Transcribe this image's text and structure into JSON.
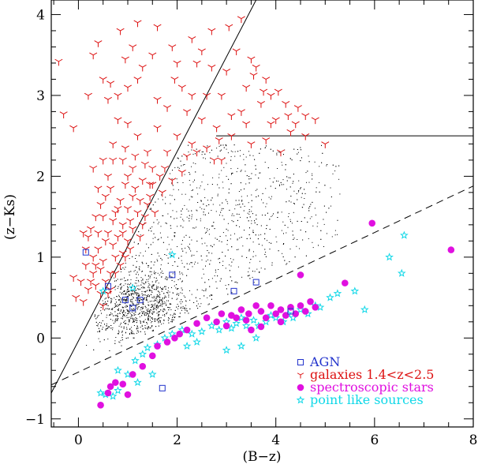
{
  "chart_data": {
    "type": "scatter",
    "title": "",
    "xlabel": "(B−z)",
    "ylabel": "(z−Ks)",
    "xlim": [
      -0.55,
      8.0
    ],
    "ylim": [
      -1.1,
      4.18
    ],
    "xticks": [
      0,
      2,
      4,
      6,
      8
    ],
    "xtick_labels": [
      "0",
      "2",
      "4",
      "6",
      "8"
    ],
    "yticks": [
      -1,
      0,
      1,
      2,
      3,
      4
    ],
    "ytick_labels": [
      "−1",
      "0",
      "1",
      "2",
      "3",
      "4"
    ],
    "grid": false,
    "legend_position": "bottom-right",
    "lines": [
      {
        "style": "solid",
        "points": [
          [
            -0.55,
            -0.68
          ],
          [
            3.6,
            4.18
          ]
        ]
      },
      {
        "style": "solid",
        "points": [
          [
            2.79,
            2.5
          ],
          [
            8.0,
            2.5
          ]
        ]
      },
      {
        "style": "dashed",
        "points": [
          [
            -0.55,
            -0.58
          ],
          [
            8.0,
            1.88
          ]
        ]
      }
    ],
    "series": [
      {
        "name": "AGN",
        "marker": "open-square",
        "color": "#2233cc",
        "points": [
          [
            0.15,
            1.06
          ],
          [
            0.95,
            0.47
          ],
          [
            1.1,
            0.37
          ],
          [
            1.25,
            0.47
          ],
          [
            1.9,
            0.78
          ],
          [
            0.6,
            0.64
          ],
          [
            3.15,
            0.58
          ],
          [
            3.6,
            0.69
          ],
          [
            4.3,
            0.33
          ],
          [
            1.7,
            -0.62
          ]
        ]
      },
      {
        "name": "galaxies 1.4<z<2.5",
        "marker": "tri",
        "color": "#dd1111",
        "points": [
          [
            -0.4,
            3.42
          ],
          [
            -0.3,
            2.77
          ],
          [
            -0.1,
            2.6
          ],
          [
            0.2,
            3.0
          ],
          [
            0.3,
            3.5
          ],
          [
            0.5,
            3.2
          ],
          [
            0.6,
            2.95
          ],
          [
            0.85,
            3.8
          ],
          [
            0.8,
            3.0
          ],
          [
            1.1,
            3.6
          ],
          [
            1.0,
            3.1
          ],
          [
            1.3,
            3.35
          ],
          [
            1.5,
            3.5
          ],
          [
            1.2,
            3.9
          ],
          [
            1.6,
            3.85
          ],
          [
            1.9,
            3.6
          ],
          [
            1.95,
            3.2
          ],
          [
            1.8,
            2.85
          ],
          [
            2.1,
            3.1
          ],
          [
            2.3,
            3.7
          ],
          [
            2.4,
            3.4
          ],
          [
            2.6,
            3.0
          ],
          [
            2.7,
            3.35
          ],
          [
            2.9,
            3.0
          ],
          [
            2.8,
            2.6
          ],
          [
            3.0,
            3.3
          ],
          [
            3.2,
            3.55
          ],
          [
            3.3,
            2.8
          ],
          [
            3.4,
            3.1
          ],
          [
            3.5,
            3.45
          ],
          [
            3.6,
            3.35
          ],
          [
            3.7,
            2.9
          ],
          [
            3.8,
            3.2
          ],
          [
            3.9,
            3.0
          ],
          [
            4.0,
            2.7
          ],
          [
            4.2,
            2.9
          ],
          [
            4.4,
            2.65
          ],
          [
            4.6,
            2.5
          ],
          [
            4.8,
            2.7
          ],
          [
            5.0,
            2.4
          ],
          [
            2.2,
            2.8
          ],
          [
            2.5,
            2.7
          ],
          [
            2.3,
            2.4
          ],
          [
            2.0,
            2.5
          ],
          [
            2.6,
            2.35
          ],
          [
            2.9,
            2.2
          ],
          [
            3.1,
            2.5
          ],
          [
            3.4,
            2.65
          ],
          [
            3.5,
            2.4
          ],
          [
            3.8,
            2.45
          ],
          [
            4.1,
            2.3
          ],
          [
            4.3,
            2.55
          ],
          [
            0.7,
            2.4
          ],
          [
            0.9,
            2.2
          ],
          [
            1.0,
            2.0
          ],
          [
            1.2,
            2.5
          ],
          [
            1.4,
            2.3
          ],
          [
            1.5,
            2.1
          ],
          [
            1.6,
            2.6
          ],
          [
            1.3,
            1.95
          ],
          [
            1.5,
            1.9
          ],
          [
            1.7,
            1.8
          ],
          [
            1.1,
            1.75
          ],
          [
            0.8,
            1.6
          ],
          [
            0.9,
            1.4
          ],
          [
            1.0,
            1.6
          ],
          [
            1.2,
            1.55
          ],
          [
            1.3,
            1.4
          ],
          [
            1.4,
            1.65
          ],
          [
            0.6,
            1.3
          ],
          [
            0.7,
            1.15
          ],
          [
            0.8,
            1.25
          ],
          [
            0.9,
            1.05
          ],
          [
            1.0,
            1.2
          ],
          [
            1.1,
            1.35
          ],
          [
            0.4,
            1.1
          ],
          [
            0.5,
            0.95
          ],
          [
            0.55,
            1.2
          ],
          [
            0.65,
            0.8
          ],
          [
            0.75,
            1.0
          ],
          [
            0.3,
            0.8
          ],
          [
            0.2,
            0.6
          ],
          [
            0.1,
            0.45
          ],
          [
            0.35,
            0.65
          ],
          [
            0.45,
            0.55
          ],
          [
            0.5,
            0.4
          ],
          [
            0.6,
            0.55
          ],
          [
            -0.05,
            0.5
          ],
          [
            -0.1,
            0.75
          ],
          [
            0.25,
            1.35
          ],
          [
            0.35,
            1.5
          ],
          [
            0.45,
            1.65
          ],
          [
            0.55,
            1.75
          ],
          [
            0.65,
            1.85
          ],
          [
            0.75,
            1.55
          ],
          [
            0.85,
            1.7
          ],
          [
            0.95,
            1.9
          ],
          [
            1.05,
            1.45
          ],
          [
            1.15,
            1.85
          ],
          [
            1.25,
            1.7
          ],
          [
            1.35,
            1.5
          ],
          [
            1.45,
            1.75
          ],
          [
            0.2,
            1.25
          ],
          [
            0.3,
            1.0
          ],
          [
            0.15,
            0.9
          ],
          [
            0.05,
            0.7
          ],
          [
            0.6,
            2.0
          ],
          [
            0.8,
            2.7
          ],
          [
            1.0,
            2.65
          ],
          [
            0.7,
            2.2
          ],
          [
            1.1,
            2.1
          ],
          [
            1.9,
            1.95
          ],
          [
            2.1,
            2.05
          ],
          [
            1.8,
            2.3
          ],
          [
            1.6,
            2.95
          ],
          [
            2.0,
            3.4
          ],
          [
            2.3,
            3.0
          ],
          [
            2.5,
            3.55
          ],
          [
            2.7,
            3.8
          ],
          [
            3.05,
            3.85
          ],
          [
            3.3,
            3.95
          ],
          [
            3.55,
            3.25
          ],
          [
            3.75,
            3.05
          ],
          [
            4.05,
            3.05
          ],
          [
            4.25,
            2.75
          ],
          [
            4.45,
            2.85
          ],
          [
            4.6,
            2.75
          ],
          [
            3.9,
            2.65
          ],
          [
            3.1,
            2.75
          ],
          [
            2.85,
            2.45
          ],
          [
            1.75,
            2.1
          ],
          [
            1.55,
            1.55
          ],
          [
            1.25,
            1.25
          ],
          [
            1.05,
            1.1
          ],
          [
            0.9,
            1.3
          ],
          [
            0.7,
            1.45
          ],
          [
            0.5,
            1.5
          ],
          [
            0.4,
            1.3
          ],
          [
            0.35,
            0.9
          ],
          [
            0.25,
            0.7
          ],
          [
            0.15,
            1.1
          ],
          [
            0.1,
            1.3
          ],
          [
            0.45,
            0.85
          ],
          [
            0.55,
            0.7
          ],
          [
            0.65,
            0.6
          ],
          [
            0.75,
            0.8
          ],
          [
            0.85,
            0.9
          ],
          [
            0.95,
            1.0
          ],
          [
            1.45,
            1.9
          ],
          [
            1.65,
            2.0
          ],
          [
            0.5,
            2.2
          ],
          [
            0.95,
            2.35
          ],
          [
            1.15,
            2.25
          ],
          [
            1.35,
            2.15
          ],
          [
            0.3,
            2.1
          ],
          [
            0.4,
            1.85
          ],
          [
            1.2,
            3.2
          ],
          [
            0.95,
            3.45
          ],
          [
            0.65,
            3.15
          ],
          [
            0.4,
            3.65
          ],
          [
            2.4,
            2.3
          ],
          [
            2.2,
            2.25
          ],
          [
            2.75,
            2.2
          ]
        ]
      },
      {
        "name": "spectroscopic stars",
        "marker": "filled-circle",
        "color": "#e010e0",
        "points": [
          [
            0.45,
            -0.83
          ],
          [
            0.6,
            -0.68
          ],
          [
            0.65,
            -0.6
          ],
          [
            0.75,
            -0.55
          ],
          [
            0.9,
            -0.57
          ],
          [
            1.0,
            -0.7
          ],
          [
            1.1,
            -0.45
          ],
          [
            1.3,
            -0.35
          ],
          [
            1.5,
            -0.22
          ],
          [
            1.6,
            -0.1
          ],
          [
            1.8,
            -0.05
          ],
          [
            1.95,
            0.0
          ],
          [
            2.05,
            0.05
          ],
          [
            2.2,
            0.1
          ],
          [
            2.4,
            0.18
          ],
          [
            2.6,
            0.25
          ],
          [
            2.8,
            0.2
          ],
          [
            2.9,
            0.3
          ],
          [
            3.0,
            0.15
          ],
          [
            3.1,
            0.28
          ],
          [
            3.2,
            0.25
          ],
          [
            3.3,
            0.35
          ],
          [
            3.4,
            0.22
          ],
          [
            3.45,
            0.3
          ],
          [
            3.6,
            0.4
          ],
          [
            3.7,
            0.33
          ],
          [
            3.8,
            0.25
          ],
          [
            3.9,
            0.4
          ],
          [
            4.0,
            0.3
          ],
          [
            4.1,
            0.35
          ],
          [
            4.2,
            0.28
          ],
          [
            4.3,
            0.38
          ],
          [
            4.4,
            0.3
          ],
          [
            4.5,
            0.4
          ],
          [
            4.6,
            0.33
          ],
          [
            4.7,
            0.45
          ],
          [
            4.8,
            0.38
          ],
          [
            4.5,
            0.78
          ],
          [
            5.4,
            0.68
          ],
          [
            5.95,
            1.42
          ],
          [
            7.55,
            1.09
          ],
          [
            3.5,
            0.1
          ],
          [
            3.7,
            0.14
          ],
          [
            4.1,
            0.2
          ]
        ]
      },
      {
        "name": "point like sources",
        "marker": "star",
        "color": "#10d8e8",
        "points": [
          [
            0.5,
            0.58
          ],
          [
            0.45,
            -0.68
          ],
          [
            0.55,
            -0.7
          ],
          [
            0.7,
            -0.72
          ],
          [
            0.8,
            -0.65
          ],
          [
            1.0,
            -0.45
          ],
          [
            0.8,
            -0.4
          ],
          [
            1.15,
            -0.28
          ],
          [
            1.3,
            -0.2
          ],
          [
            1.4,
            -0.12
          ],
          [
            1.6,
            -0.08
          ],
          [
            1.75,
            0.0
          ],
          [
            1.9,
            0.05
          ],
          [
            2.1,
            0.1
          ],
          [
            2.3,
            0.05
          ],
          [
            2.4,
            -0.05
          ],
          [
            2.5,
            0.08
          ],
          [
            2.7,
            0.15
          ],
          [
            2.85,
            0.1
          ],
          [
            3.0,
            0.2
          ],
          [
            3.1,
            0.12
          ],
          [
            3.2,
            0.18
          ],
          [
            3.3,
            0.25
          ],
          [
            3.4,
            0.15
          ],
          [
            3.55,
            0.22
          ],
          [
            3.65,
            0.15
          ],
          [
            3.8,
            0.2
          ],
          [
            3.9,
            0.28
          ],
          [
            4.0,
            0.25
          ],
          [
            4.15,
            0.2
          ],
          [
            4.25,
            0.3
          ],
          [
            4.35,
            0.25
          ],
          [
            4.5,
            0.35
          ],
          [
            4.65,
            0.3
          ],
          [
            4.8,
            0.4
          ],
          [
            4.9,
            0.38
          ],
          [
            5.1,
            0.5
          ],
          [
            5.25,
            0.55
          ],
          [
            5.6,
            0.58
          ],
          [
            5.8,
            0.35
          ],
          [
            6.3,
            1.0
          ],
          [
            6.55,
            0.8
          ],
          [
            6.6,
            1.27
          ],
          [
            1.9,
            1.03
          ],
          [
            1.1,
            0.62
          ],
          [
            3.0,
            -0.15
          ],
          [
            3.3,
            -0.1
          ],
          [
            3.6,
            0.0
          ],
          [
            2.2,
            -0.1
          ],
          [
            1.5,
            -0.45
          ],
          [
            1.2,
            -0.55
          ]
        ]
      },
      {
        "name": "",
        "marker": "dot",
        "color": "#000000",
        "count": 2600,
        "description_region": "grey cloud between solid and dashed lines"
      }
    ]
  }
}
